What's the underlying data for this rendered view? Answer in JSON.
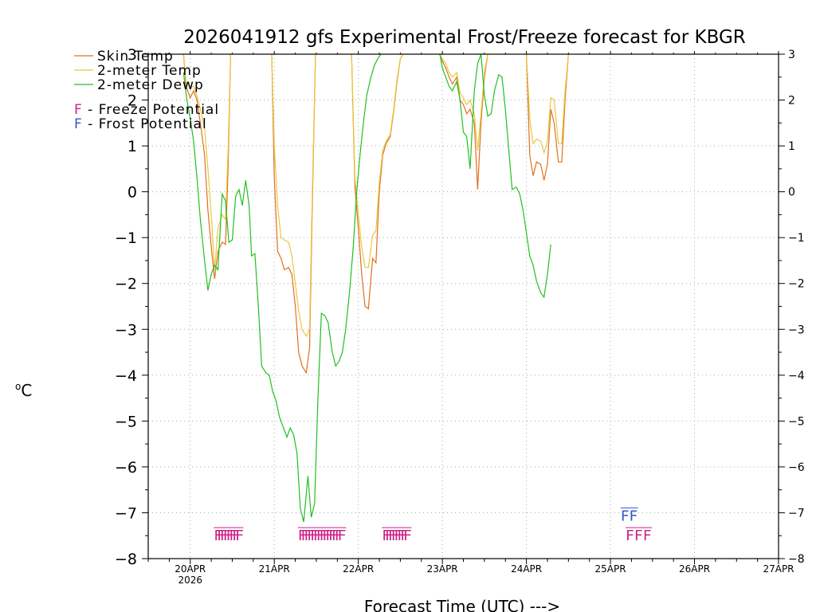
{
  "chart_data": {
    "type": "line",
    "title": "2026041912 gfs Experimental Frost/Freeze forecast for KBGR",
    "xlabel": "Forecast Time (UTC) --->",
    "ylabel": "oC",
    "ylabel_sup": "o",
    "ylabel_main": "C",
    "ylim": [
      -8,
      3
    ],
    "xlim": [
      -0.5,
      7
    ],
    "yticks": [
      3,
      2,
      1,
      0,
      -1,
      -2,
      -3,
      -4,
      -5,
      -6,
      -7,
      -8
    ],
    "xticks": [
      {
        "x": 0,
        "label": "20APR",
        "sub": "2026"
      },
      {
        "x": 1,
        "label": "21APR",
        "sub": ""
      },
      {
        "x": 2,
        "label": "22APR",
        "sub": ""
      },
      {
        "x": 3,
        "label": "23APR",
        "sub": ""
      },
      {
        "x": 4,
        "label": "24APR",
        "sub": ""
      },
      {
        "x": 5,
        "label": "25APR",
        "sub": ""
      },
      {
        "x": 6,
        "label": "26APR",
        "sub": ""
      },
      {
        "x": 7,
        "label": "27APR",
        "sub": ""
      }
    ],
    "grid": true,
    "legend_position": "top-left",
    "series": [
      {
        "name": "Skin Temp",
        "color": "#e07020",
        "points": [
          [
            -0.08,
            3.0
          ],
          [
            -0.05,
            2.3
          ],
          [
            0.0,
            2.05
          ],
          [
            0.04,
            2.2
          ],
          [
            0.08,
            2.0
          ],
          [
            0.12,
            1.5
          ],
          [
            0.17,
            0.8
          ],
          [
            0.21,
            -0.4
          ],
          [
            0.25,
            -1.2
          ],
          [
            0.29,
            -1.9
          ],
          [
            0.33,
            -1.3
          ],
          [
            0.38,
            -1.1
          ],
          [
            0.42,
            -1.15
          ],
          [
            0.45,
            0.5
          ],
          [
            0.48,
            3.0
          ],
          [
            null,
            null
          ],
          [
            0.97,
            3.0
          ],
          [
            1.0,
            0.3
          ],
          [
            1.04,
            -1.3
          ],
          [
            1.08,
            -1.45
          ],
          [
            1.12,
            -1.7
          ],
          [
            1.17,
            -1.65
          ],
          [
            1.21,
            -1.8
          ],
          [
            1.25,
            -2.5
          ],
          [
            1.29,
            -3.5
          ],
          [
            1.33,
            -3.8
          ],
          [
            1.38,
            -3.95
          ],
          [
            1.42,
            -3.4
          ],
          [
            1.45,
            -0.5
          ],
          [
            1.49,
            3.0
          ],
          [
            null,
            null
          ],
          [
            1.92,
            3.0
          ],
          [
            1.96,
            0.1
          ],
          [
            2.0,
            -0.8
          ],
          [
            2.04,
            -1.8
          ],
          [
            2.08,
            -2.5
          ],
          [
            2.12,
            -2.55
          ],
          [
            2.17,
            -1.45
          ],
          [
            2.21,
            -1.55
          ],
          [
            2.25,
            0.0
          ],
          [
            2.29,
            0.8
          ],
          [
            2.33,
            1.05
          ],
          [
            2.38,
            1.2
          ],
          [
            2.42,
            1.75
          ],
          [
            2.46,
            2.4
          ],
          [
            2.5,
            2.9
          ],
          [
            2.53,
            3.0
          ],
          [
            null,
            null
          ],
          [
            2.97,
            3.0
          ],
          [
            3.0,
            2.85
          ],
          [
            3.04,
            2.7
          ],
          [
            3.08,
            2.5
          ],
          [
            3.12,
            2.35
          ],
          [
            3.17,
            2.5
          ],
          [
            3.21,
            2.0
          ],
          [
            3.25,
            1.9
          ],
          [
            3.29,
            1.7
          ],
          [
            3.33,
            1.8
          ],
          [
            3.38,
            1.5
          ],
          [
            3.42,
            0.05
          ],
          [
            3.46,
            1.5
          ],
          [
            3.5,
            2.5
          ],
          [
            3.54,
            3.0
          ],
          [
            null,
            null
          ],
          [
            4.0,
            3.0
          ],
          [
            4.04,
            0.8
          ],
          [
            4.08,
            0.35
          ],
          [
            4.12,
            0.65
          ],
          [
            4.17,
            0.6
          ],
          [
            4.21,
            0.25
          ],
          [
            4.25,
            0.6
          ],
          [
            4.29,
            1.8
          ],
          [
            4.33,
            1.5
          ],
          [
            4.38,
            0.65
          ],
          [
            4.42,
            0.65
          ],
          [
            4.46,
            2.0
          ],
          [
            4.5,
            3.0
          ]
        ]
      },
      {
        "name": "2-meter Temp",
        "color": "#e8c840",
        "points": [
          [
            -0.08,
            3.0
          ],
          [
            -0.05,
            2.4
          ],
          [
            0.0,
            2.3
          ],
          [
            0.04,
            2.3
          ],
          [
            0.08,
            2.1
          ],
          [
            0.12,
            1.8
          ],
          [
            0.17,
            1.4
          ],
          [
            0.21,
            0.5
          ],
          [
            0.25,
            -0.5
          ],
          [
            0.29,
            -1.7
          ],
          [
            0.33,
            -0.8
          ],
          [
            0.38,
            -0.5
          ],
          [
            0.42,
            -0.6
          ],
          [
            0.45,
            0.9
          ],
          [
            0.48,
            3.0
          ],
          [
            null,
            null
          ],
          [
            0.97,
            3.0
          ],
          [
            1.0,
            1.0
          ],
          [
            1.04,
            -0.3
          ],
          [
            1.08,
            -1.0
          ],
          [
            1.12,
            -1.05
          ],
          [
            1.17,
            -1.1
          ],
          [
            1.21,
            -1.4
          ],
          [
            1.25,
            -2.0
          ],
          [
            1.29,
            -2.6
          ],
          [
            1.33,
            -3.0
          ],
          [
            1.38,
            -3.15
          ],
          [
            1.42,
            -3.0
          ],
          [
            1.45,
            -0.2
          ],
          [
            1.49,
            3.0
          ],
          [
            null,
            null
          ],
          [
            1.92,
            3.0
          ],
          [
            1.96,
            0.3
          ],
          [
            2.0,
            -0.5
          ],
          [
            2.04,
            -1.2
          ],
          [
            2.08,
            -1.65
          ],
          [
            2.12,
            -1.65
          ],
          [
            2.17,
            -0.95
          ],
          [
            2.21,
            -0.85
          ],
          [
            2.25,
            0.2
          ],
          [
            2.29,
            0.9
          ],
          [
            2.33,
            1.1
          ],
          [
            2.38,
            1.25
          ],
          [
            2.42,
            1.8
          ],
          [
            2.46,
            2.45
          ],
          [
            2.5,
            2.9
          ],
          [
            2.53,
            3.0
          ],
          [
            null,
            null
          ],
          [
            2.97,
            3.0
          ],
          [
            3.0,
            2.9
          ],
          [
            3.04,
            2.8
          ],
          [
            3.08,
            2.6
          ],
          [
            3.12,
            2.5
          ],
          [
            3.17,
            2.6
          ],
          [
            3.21,
            2.15
          ],
          [
            3.25,
            2.05
          ],
          [
            3.29,
            1.9
          ],
          [
            3.33,
            2.0
          ],
          [
            3.38,
            1.7
          ],
          [
            3.42,
            0.9
          ],
          [
            3.46,
            1.7
          ],
          [
            3.5,
            2.6
          ],
          [
            3.54,
            3.0
          ],
          [
            null,
            null
          ],
          [
            4.0,
            3.0
          ],
          [
            4.04,
            1.6
          ],
          [
            4.08,
            1.05
          ],
          [
            4.12,
            1.15
          ],
          [
            4.17,
            1.1
          ],
          [
            4.21,
            0.85
          ],
          [
            4.25,
            1.1
          ],
          [
            4.29,
            2.05
          ],
          [
            4.33,
            2.0
          ],
          [
            4.38,
            1.05
          ],
          [
            4.42,
            1.05
          ],
          [
            4.46,
            2.2
          ],
          [
            4.5,
            3.0
          ]
        ]
      },
      {
        "name": "2-meter Dewp",
        "color": "#20c020",
        "points": [
          [
            -0.08,
            2.6
          ],
          [
            -0.04,
            2.0
          ],
          [
            0.0,
            1.6
          ],
          [
            0.04,
            1.1
          ],
          [
            0.08,
            0.3
          ],
          [
            0.12,
            -0.6
          ],
          [
            0.17,
            -1.5
          ],
          [
            0.21,
            -2.15
          ],
          [
            0.25,
            -1.8
          ],
          [
            0.29,
            -1.6
          ],
          [
            0.33,
            -1.7
          ],
          [
            0.38,
            -0.05
          ],
          [
            0.42,
            -0.2
          ],
          [
            0.46,
            -1.1
          ],
          [
            0.5,
            -1.05
          ],
          [
            0.54,
            -0.1
          ],
          [
            0.58,
            0.05
          ],
          [
            0.62,
            -0.3
          ],
          [
            0.66,
            0.25
          ],
          [
            0.7,
            -0.3
          ],
          [
            0.73,
            -1.4
          ],
          [
            0.77,
            -1.35
          ],
          [
            0.81,
            -2.5
          ],
          [
            0.85,
            -3.8
          ],
          [
            0.9,
            -3.95
          ],
          [
            0.94,
            -4.0
          ],
          [
            0.98,
            -4.35
          ],
          [
            1.02,
            -4.55
          ],
          [
            1.06,
            -4.9
          ],
          [
            1.1,
            -5.1
          ],
          [
            1.15,
            -5.35
          ],
          [
            1.19,
            -5.15
          ],
          [
            1.23,
            -5.3
          ],
          [
            1.27,
            -5.7
          ],
          [
            1.31,
            -6.9
          ],
          [
            1.35,
            -7.2
          ],
          [
            1.4,
            -6.2
          ],
          [
            1.44,
            -7.1
          ],
          [
            1.48,
            -6.8
          ],
          [
            1.52,
            -4.5
          ],
          [
            1.56,
            -2.65
          ],
          [
            1.6,
            -2.7
          ],
          [
            1.64,
            -2.85
          ],
          [
            1.69,
            -3.5
          ],
          [
            1.73,
            -3.8
          ],
          [
            1.77,
            -3.7
          ],
          [
            1.81,
            -3.5
          ],
          [
            1.85,
            -3.0
          ],
          [
            1.9,
            -2.1
          ],
          [
            1.94,
            -1.2
          ],
          [
            1.98,
            0.0
          ],
          [
            2.02,
            0.8
          ],
          [
            2.06,
            1.5
          ],
          [
            2.1,
            2.1
          ],
          [
            2.15,
            2.5
          ],
          [
            2.19,
            2.75
          ],
          [
            2.23,
            2.9
          ],
          [
            2.27,
            3.0
          ],
          [
            null,
            null
          ],
          [
            2.97,
            3.0
          ],
          [
            3.0,
            2.7
          ],
          [
            3.04,
            2.5
          ],
          [
            3.08,
            2.3
          ],
          [
            3.12,
            2.2
          ],
          [
            3.17,
            2.4
          ],
          [
            3.21,
            2.0
          ],
          [
            3.25,
            1.3
          ],
          [
            3.29,
            1.2
          ],
          [
            3.33,
            0.5
          ],
          [
            3.38,
            2.2
          ],
          [
            3.42,
            2.8
          ],
          [
            3.46,
            3.0
          ],
          [
            3.5,
            2.1
          ],
          [
            3.54,
            1.65
          ],
          [
            3.58,
            1.7
          ],
          [
            3.62,
            2.2
          ],
          [
            3.67,
            2.55
          ],
          [
            3.71,
            2.5
          ],
          [
            3.75,
            1.8
          ],
          [
            3.79,
            0.9
          ],
          [
            3.83,
            0.05
          ],
          [
            3.88,
            0.1
          ],
          [
            3.92,
            -0.05
          ],
          [
            3.96,
            -0.4
          ],
          [
            4.0,
            -0.9
          ],
          [
            4.04,
            -1.4
          ],
          [
            4.08,
            -1.6
          ],
          [
            4.12,
            -1.95
          ],
          [
            4.17,
            -2.2
          ],
          [
            4.21,
            -2.3
          ],
          [
            4.25,
            -1.8
          ],
          [
            4.29,
            -1.15
          ]
        ]
      }
    ],
    "potential_markers": [
      {
        "name": "Freeze Potential",
        "row": "freeze",
        "color": "#cc2288",
        "text": "FFFFFFFF",
        "x": 0.28
      },
      {
        "name": "Freeze Potential",
        "row": "freeze",
        "color": "#cc2288",
        "text": "FFFFFFFFFFFFFF",
        "x": 1.28
      },
      {
        "name": "Freeze Potential",
        "row": "freeze",
        "color": "#cc2288",
        "text": "FFFFFFFF",
        "x": 2.28
      },
      {
        "name": "Freeze Potential",
        "row": "freeze",
        "color": "#cc2288",
        "text": "FFF",
        "x": 5.18
      },
      {
        "name": "Frost Potential",
        "row": "frost",
        "color": "#3355cc",
        "text": "FF",
        "x": 5.12
      }
    ],
    "legend": [
      {
        "label": "Skin Temp",
        "color": "#e07020"
      },
      {
        "label": "2-meter Temp",
        "color": "#e8c840"
      },
      {
        "label": "2-meter Dewp",
        "color": "#20c020"
      }
    ],
    "potential_legend": [
      {
        "letter": "F",
        "label": " - Freeze Potential",
        "color": "#cc2288"
      },
      {
        "letter": "F",
        "label": " - Frost Potential",
        "color": "#3355cc"
      }
    ]
  }
}
